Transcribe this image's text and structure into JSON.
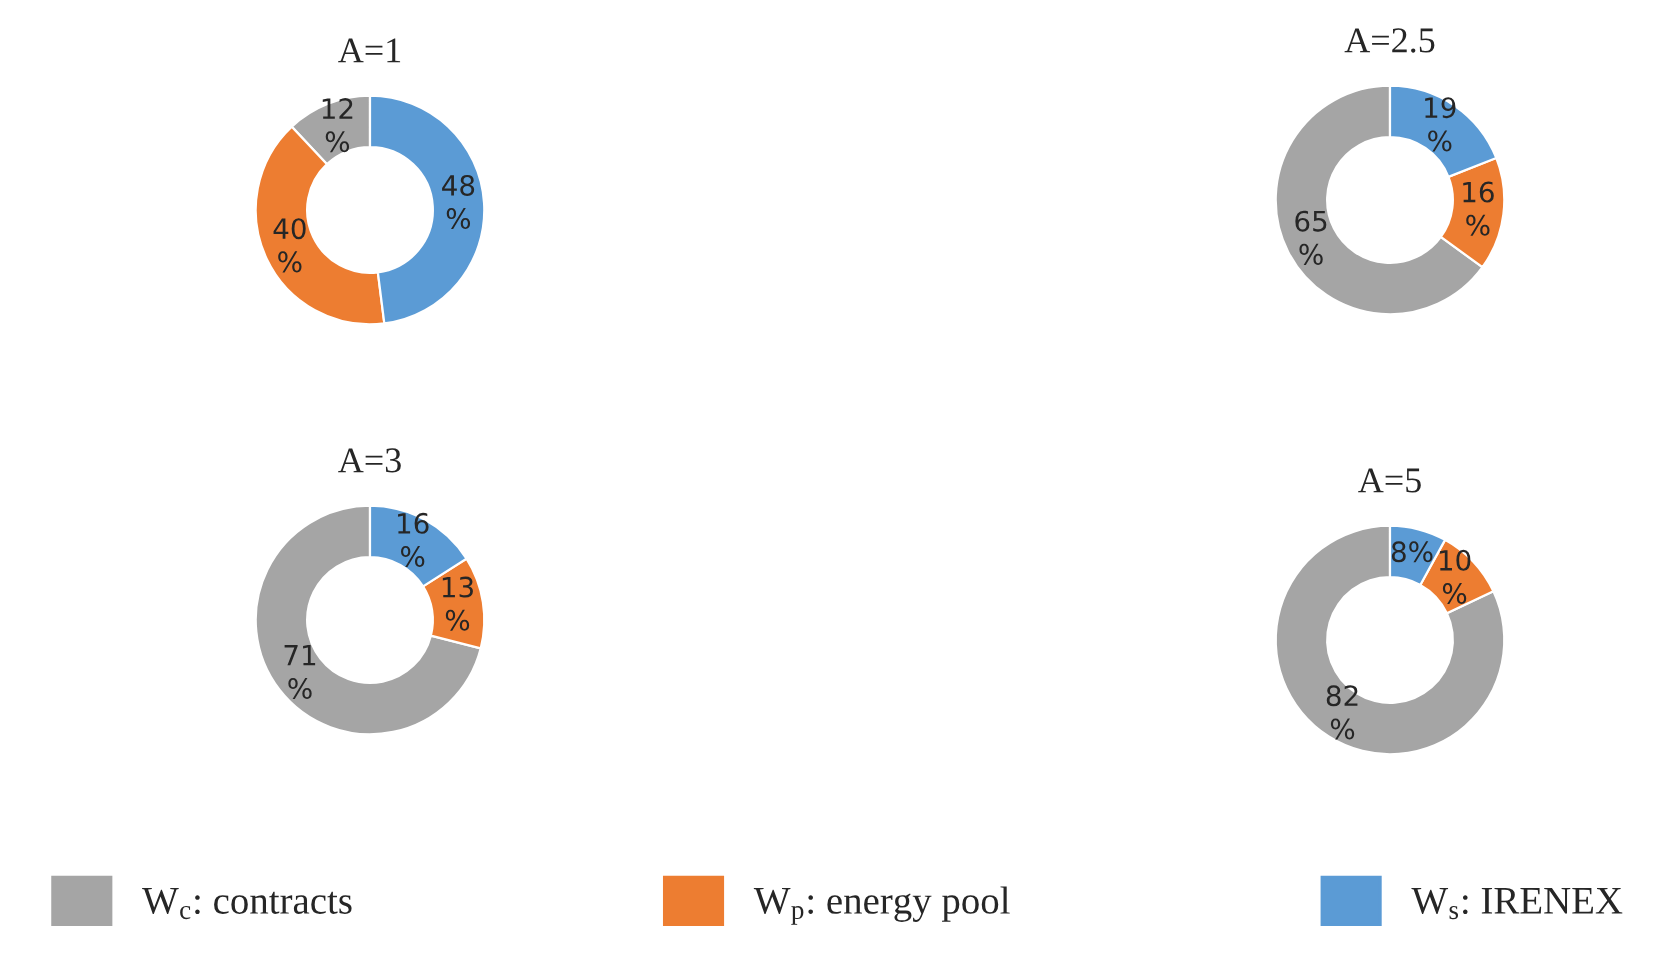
{
  "chart_data": [
    {
      "type": "donut",
      "title": "A=1",
      "categories": [
        "W$_{c}$: contracts",
        "W$_{p}$: energy pool",
        "W$_{s}$: IRENEX"
      ],
      "values": [
        12,
        40,
        48
      ],
      "colors": [
        "#a5a5a5",
        "#ed7d31",
        "#5b9bd5"
      ],
      "value_labels": [
        "12\n%",
        "40\n%",
        "48\n%"
      ],
      "legend": "bottom"
    },
    {
      "type": "donut",
      "title": "A=2.5",
      "categories": [
        null,
        null,
        null
      ],
      "values": [
        65,
        16,
        19
      ],
      "colors": [
        "#a5a5a5",
        "#ed7d31",
        "#5b9bd5"
      ],
      "value_labels": [
        "65\n%",
        "16\n%",
        "19\n%"
      ]
    },
    {
      "type": "donut",
      "title": "A=3",
      "categories": [
        null,
        null,
        null
      ],
      "values": [
        71,
        13,
        16
      ],
      "colors": [
        "#a5a5a5",
        "#ed7d31",
        "#5b9bd5"
      ],
      "value_labels": [
        "71\n%",
        "13\n%",
        "16\n%"
      ]
    },
    {
      "type": "donut",
      "title": "A=5",
      "categories": [
        null,
        null,
        null
      ],
      "values": [
        82,
        10,
        8
      ],
      "colors": [
        "#a5a5a5",
        "#ed7d31",
        "#5b9bd5"
      ],
      "value_labels": [
        "82\n%",
        "10\n%",
        "8%"
      ]
    }
  ]
}
